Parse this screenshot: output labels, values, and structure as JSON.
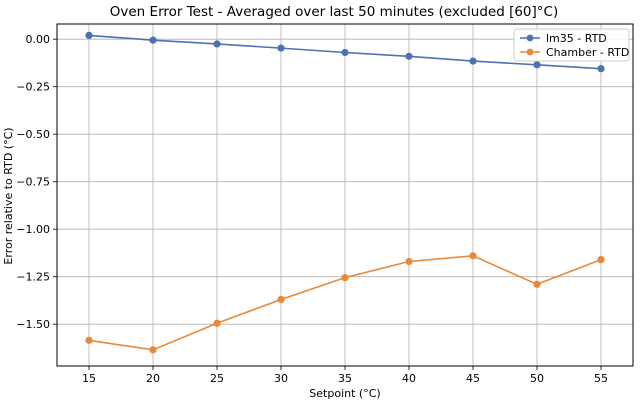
{
  "chart_data": {
    "type": "line",
    "title": "Oven Error Test - Averaged over last 50 minutes (excluded [60]°C)",
    "xlabel": "Setpoint (°C)",
    "ylabel": "Error relative to RTD (°C)",
    "x": [
      15,
      20,
      25,
      30,
      35,
      40,
      45,
      50,
      55
    ],
    "x_ticks": [
      "15",
      "20",
      "25",
      "30",
      "35",
      "40",
      "45",
      "50",
      "55"
    ],
    "y_ticks": [
      "0.00",
      "−0.25",
      "−0.50",
      "−0.75",
      "−1.00",
      "−1.25",
      "−1.50"
    ],
    "y_tick_values": [
      0.0,
      -0.25,
      -0.5,
      -0.75,
      -1.0,
      -1.25,
      -1.5
    ],
    "xlim": [
      12.5,
      57.5
    ],
    "ylim": [
      -1.72,
      0.08
    ],
    "grid": true,
    "legend_position": "top-right",
    "series": [
      {
        "name": "lm35 - RTD",
        "color": "#4c72b0",
        "values": [
          0.02,
          -0.005,
          -0.025,
          -0.047,
          -0.07,
          -0.09,
          -0.115,
          -0.135,
          -0.155
        ]
      },
      {
        "name": "Chamber - RTD",
        "color": "#e8883a",
        "values": [
          -1.585,
          -1.635,
          -1.495,
          -1.37,
          -1.255,
          -1.17,
          -1.14,
          -1.29,
          -1.16
        ]
      }
    ]
  }
}
